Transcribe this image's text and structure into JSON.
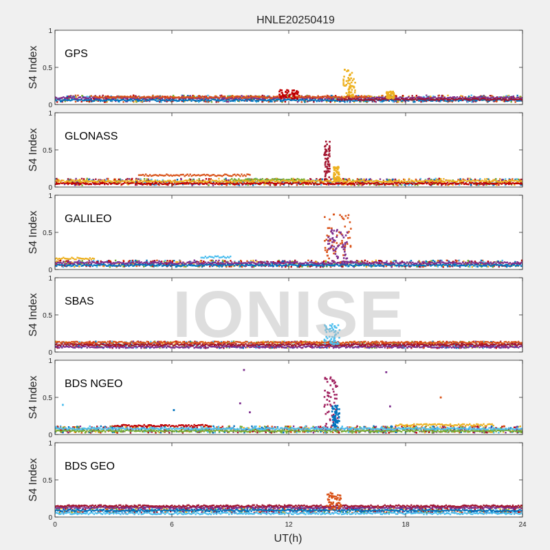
{
  "title": "HNLE20250419",
  "watermark": "IONISE",
  "chart_data": {
    "type": "scatter",
    "xlabel": "UT(h)",
    "xlim": [
      0,
      24
    ],
    "xticks": [
      "0",
      "6",
      "12",
      "18",
      "24"
    ],
    "ylabel": "S4 Index",
    "ylim": [
      0,
      1
    ],
    "yticks": [
      "0",
      "0.5",
      "1"
    ],
    "grid": false,
    "panels": [
      {
        "label": "GPS",
        "baseline": 0.08,
        "traces": [
          {
            "x": [
              0,
              24
            ],
            "y": 0.06
          },
          {
            "x": [
              0,
              24
            ],
            "y": 0.09
          },
          {
            "x": [
              14.5,
              24
            ],
            "y": 0.07
          },
          {
            "x": [
              2,
              16
            ],
            "y": 0.1
          }
        ],
        "bursts": [
          {
            "x": [
              14.8,
              15.4
            ],
            "y": [
              0.1,
              0.48
            ],
            "color": "yellow"
          },
          {
            "x": [
              11.5,
              12.5
            ],
            "y": [
              0.08,
              0.2
            ],
            "color": "red"
          },
          {
            "x": [
              17,
              17.4
            ],
            "y": [
              0.08,
              0.18
            ],
            "color": "yellow"
          }
        ]
      },
      {
        "label": "GLONASS",
        "baseline": 0.07,
        "traces": [
          {
            "x": [
              4.3,
              10
            ],
            "y": 0.16
          },
          {
            "x": [
              9,
              12.8
            ],
            "y": 0.1
          },
          {
            "x": [
              0,
              24
            ],
            "y": 0.05
          },
          {
            "x": [
              0,
              24
            ],
            "y": 0.08
          }
        ],
        "bursts": [
          {
            "x": [
              13.8,
              14.1
            ],
            "y": [
              0.1,
              0.62
            ],
            "color": "darkred"
          },
          {
            "x": [
              14.3,
              14.6
            ],
            "y": [
              0.08,
              0.28
            ],
            "color": "yellow"
          }
        ]
      },
      {
        "label": "GALILEO",
        "baseline": 0.08,
        "traces": [
          {
            "x": [
              0,
              2
            ],
            "y": 0.15
          },
          {
            "x": [
              7.5,
              9
            ],
            "y": 0.17
          },
          {
            "x": [
              0,
              24
            ],
            "y": 0.06
          },
          {
            "x": [
              0,
              24
            ],
            "y": 0.09
          }
        ],
        "bursts": [
          {
            "x": [
              13.8,
              15.2
            ],
            "y": [
              0.1,
              0.75
            ],
            "color": "orange"
          },
          {
            "x": [
              14,
              15
            ],
            "y": [
              0.1,
              0.55
            ],
            "color": "purple"
          }
        ]
      },
      {
        "label": "SBAS",
        "baseline": 0.1,
        "traces": [
          {
            "x": [
              0,
              24
            ],
            "y": 0.07
          },
          {
            "x": [
              0,
              24
            ],
            "y": 0.1
          },
          {
            "x": [
              0,
              24
            ],
            "y": 0.13
          }
        ],
        "bursts": [
          {
            "x": [
              13.8,
              14.6
            ],
            "y": [
              0.1,
              0.38
            ],
            "color": "cyan"
          }
        ]
      },
      {
        "label": "BDS NGEO",
        "baseline": 0.07,
        "traces": [
          {
            "x": [
              0,
              24
            ],
            "y": 0.05
          },
          {
            "x": [
              3,
              8
            ],
            "y": 0.12
          },
          {
            "x": [
              17.5,
              22.5
            ],
            "y": 0.13
          },
          {
            "x": [
              0,
              24
            ],
            "y": 0.08
          }
        ],
        "bursts": [
          {
            "x": [
              13.8,
              14.5
            ],
            "y": [
              0.1,
              0.78
            ],
            "color": "magenta"
          },
          {
            "x": [
              14.2,
              14.6
            ],
            "y": [
              0.1,
              0.4
            ],
            "color": "blue"
          }
        ],
        "outliers": [
          {
            "x": 0.4,
            "y": 0.4,
            "color": "cyan"
          },
          {
            "x": 6.1,
            "y": 0.33,
            "color": "blue"
          },
          {
            "x": 9.7,
            "y": 0.87,
            "color": "purple"
          },
          {
            "x": 9.5,
            "y": 0.42,
            "color": "purple"
          },
          {
            "x": 10.0,
            "y": 0.3,
            "color": "purple"
          },
          {
            "x": 17.0,
            "y": 0.84,
            "color": "purple"
          },
          {
            "x": 17.2,
            "y": 0.38,
            "color": "purple"
          },
          {
            "x": 19.8,
            "y": 0.5,
            "color": "orange"
          }
        ]
      },
      {
        "label": "BDS GEO",
        "baseline": 0.1,
        "traces": [
          {
            "x": [
              0,
              24
            ],
            "y": 0.05
          },
          {
            "x": [
              0,
              24
            ],
            "y": 0.09
          },
          {
            "x": [
              0,
              24
            ],
            "y": 0.13
          },
          {
            "x": [
              0,
              24
            ],
            "y": 0.15
          }
        ],
        "bursts": [
          {
            "x": [
              13.9,
              14.7
            ],
            "y": [
              0.1,
              0.33
            ],
            "color": "orange"
          }
        ]
      }
    ]
  },
  "colors": {
    "blue": "#0072BD",
    "orange": "#D95319",
    "yellow": "#EDB120",
    "purple": "#7E2F8E",
    "green": "#77AC30",
    "cyan": "#4DBEEE",
    "darkred": "#A2142F",
    "red": "#C00000",
    "magenta": "#A0205F"
  }
}
